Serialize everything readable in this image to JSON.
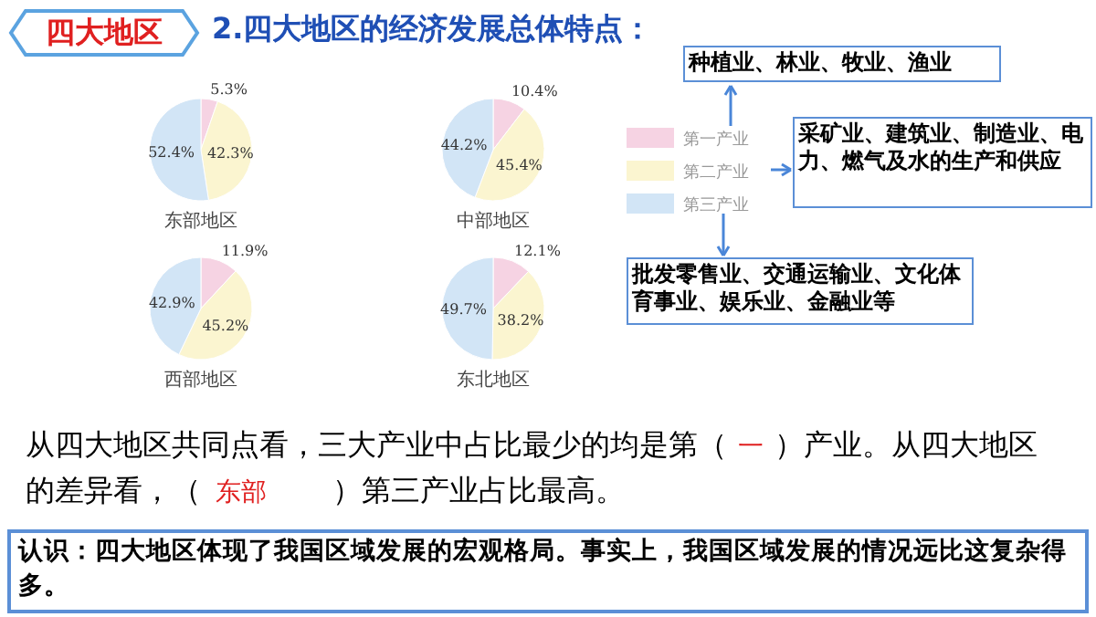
{
  "chart_data": [
    {
      "type": "other",
      "title": "2.四大地区的经济发展总体特点：",
      "annotations": [
        "四大地区",
        "种植业、林业、牧业、渔业",
        "采矿业、建筑业、制造业、电力、燃气及水的生产和供应",
        "批发零售业、交通运输业、文化体育事业、娱乐业、金融业等",
        "从四大地区共同点看，三大产业中占比最少的均是第（",
        "一",
        "）产业。从四大地区的差异看，（",
        "东部",
        "）第三产业占比最高。",
        "认识：四大地区体现了我国区域发展的宏观格局。事实上，我国区域发展的情况远比这复杂得多。"
      ]
    },
    {
      "type": "pie",
      "title": "东部地区",
      "categories": [
        null,
        null,
        null
      ],
      "values": [
        5.3,
        42.3,
        52.4
      ],
      "value_labels": [
        "5.3%",
        "42.3%",
        "52.4%"
      ],
      "colors": [
        "#f6d3e3",
        "#fbf5d0",
        "#d2e5f6"
      ]
    },
    {
      "type": "pie",
      "title": "中部地区",
      "categories": [
        "第一产业",
        "第二产业",
        "第三产业"
      ],
      "values": [
        10.4,
        45.4,
        44.2
      ],
      "value_labels": [
        "10.4%",
        "45.4%",
        "44.2%"
      ],
      "colors": [
        "#f6d3e3",
        "#fbf5d0",
        "#d2e5f6"
      ],
      "legend": "right"
    },
    {
      "type": "pie",
      "title": "西部地区",
      "categories": [
        null,
        null,
        null
      ],
      "values": [
        11.9,
        45.2,
        42.9
      ],
      "value_labels": [
        "11.9%",
        "45.2%",
        "42.9%"
      ],
      "colors": [
        "#f6d3e3",
        "#fbf5d0",
        "#d2e5f6"
      ]
    },
    {
      "type": "pie",
      "title": "东北地区",
      "categories": [
        null,
        null,
        null
      ],
      "values": [
        12.1,
        38.2,
        49.7
      ],
      "value_labels": [
        "12.1%",
        "38.2%",
        "49.7%"
      ],
      "colors": [
        "#f6d3e3",
        "#fbf5d0",
        "#d2e5f6"
      ]
    }
  ]
}
